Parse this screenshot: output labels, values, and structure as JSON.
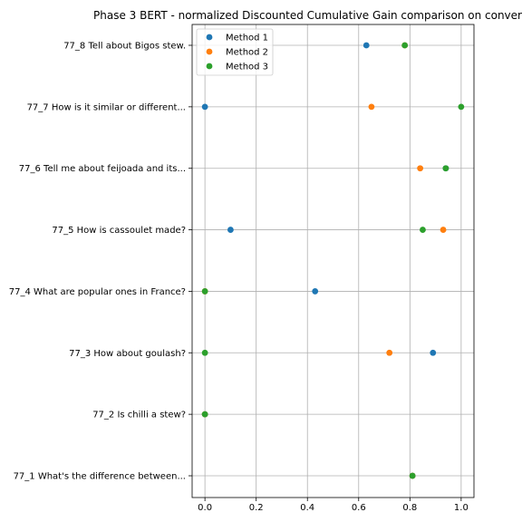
{
  "chart_data": {
    "type": "scatter",
    "title": "Phase 3 BERT - normalized Discounted Cumulative Gain comparison on conver",
    "xlabel": "",
    "ylabel": "",
    "xlim": [
      -0.05,
      1.05
    ],
    "xticks": [
      0.0,
      0.2,
      0.4,
      0.6,
      0.8,
      1.0
    ],
    "xtick_labels": [
      "0.0",
      "0.2",
      "0.4",
      "0.6",
      "0.8",
      "1.0"
    ],
    "grid": true,
    "legend_position": "top-left",
    "categories": [
      "77_1 What's the difference between...",
      "77_2 Is chilli a stew?",
      "77_3 How about goulash?",
      "77_4 What are popular ones in France?",
      "77_5 How is cassoulet made?",
      "77_6 Tell me about feijoada and its...",
      "77_7 How is it similar or different...",
      "77_8 Tell about Bigos stew."
    ],
    "series": [
      {
        "name": "Method 1",
        "color": "#1f77b4",
        "values": [
          0.81,
          0.0,
          0.89,
          0.43,
          0.1,
          0.94,
          0.0,
          0.63
        ]
      },
      {
        "name": "Method 2",
        "color": "#ff7f0e",
        "values": [
          0.81,
          0.0,
          0.72,
          0.0,
          0.93,
          0.84,
          0.65,
          0.78
        ]
      },
      {
        "name": "Method 3",
        "color": "#2ca02c",
        "values": [
          0.81,
          0.0,
          0.0,
          0.0,
          0.85,
          0.94,
          1.0,
          0.78
        ]
      }
    ]
  }
}
